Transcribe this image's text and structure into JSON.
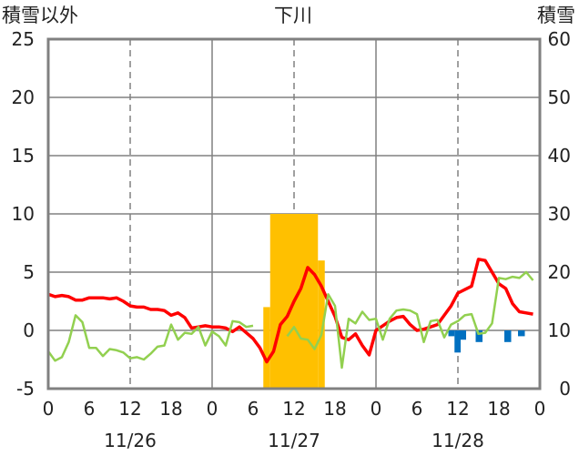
{
  "chart_data": {
    "type": "line",
    "title": "下川",
    "left_axis_label": "積雪以外",
    "right_axis_label": "積雪",
    "left_ylim": [
      -5,
      25
    ],
    "left_yticks": [
      "25",
      "20",
      "15",
      "10",
      "5",
      "0",
      "-5"
    ],
    "right_ylim": [
      0,
      60
    ],
    "right_yticks": [
      "60",
      "50",
      "40",
      "30",
      "20",
      "10",
      "0"
    ],
    "x_range_hours": [
      0,
      72
    ],
    "x_tick_labels": [
      "0",
      "6",
      "12",
      "18",
      "0",
      "6",
      "12",
      "18",
      "0",
      "6",
      "12",
      "18",
      "0"
    ],
    "date_labels": [
      {
        "hour": 12,
        "text": "11/26"
      },
      {
        "hour": 36,
        "text": "11/27"
      },
      {
        "hour": 60,
        "text": "11/28"
      }
    ],
    "grid": true,
    "series": [
      {
        "color": "#ff0000",
        "axis": "left",
        "kind": "line",
        "x": [
          0,
          1,
          2,
          3,
          4,
          5,
          6,
          7,
          8,
          9,
          10,
          11,
          12,
          13,
          14,
          15,
          16,
          17,
          18,
          19,
          20,
          21,
          22,
          23,
          24,
          25,
          26,
          27,
          28,
          29,
          30,
          31,
          32,
          33,
          34,
          35,
          36,
          37,
          38,
          39,
          40,
          41,
          42,
          43,
          44,
          45,
          46,
          47,
          48,
          49,
          50,
          51,
          52,
          53,
          54,
          55,
          56,
          57,
          58,
          59,
          60,
          61,
          62,
          63,
          64,
          65,
          66,
          67,
          68,
          69,
          70,
          71
        ],
        "values": [
          3.1,
          2.9,
          3.0,
          2.9,
          2.6,
          2.6,
          2.8,
          2.8,
          2.8,
          2.7,
          2.8,
          2.5,
          2.1,
          2.0,
          2.0,
          1.8,
          1.8,
          1.7,
          1.3,
          1.5,
          1.1,
          0.2,
          0.3,
          0.4,
          0.3,
          0.3,
          0.2,
          -0.1,
          0.3,
          -0.2,
          -0.7,
          -1.5,
          -2.7,
          -1.8,
          0.5,
          1.2,
          2.5,
          3.6,
          5.4,
          4.8,
          3.8,
          2.5,
          1.2,
          -0.6,
          -0.8,
          -0.3,
          -1.3,
          -2.1,
          0.0,
          0.4,
          0.8,
          1.1,
          1.2,
          0.5,
          0.0,
          0.1,
          0.3,
          0.5,
          1.3,
          2.1,
          3.2,
          3.5,
          3.8,
          6.1,
          6.0,
          5.0,
          4.0,
          3.6,
          2.3,
          1.6,
          1.5,
          1.4
        ]
      },
      {
        "color": "#92d050",
        "axis": "left",
        "kind": "line",
        "x": [
          0,
          1,
          2,
          3,
          4,
          5,
          6,
          7,
          8,
          9,
          10,
          11,
          12,
          13,
          14,
          15,
          16,
          17,
          18,
          19,
          20,
          21,
          22,
          23,
          24,
          25,
          26,
          27,
          28,
          29,
          30,
          31,
          32,
          33,
          34,
          35,
          36,
          37,
          38,
          39,
          40,
          41,
          42,
          43,
          44,
          45,
          46,
          47,
          48,
          49,
          50,
          51,
          52,
          53,
          54,
          55,
          56,
          57,
          58,
          59,
          60,
          61,
          62,
          63,
          64,
          65,
          66,
          67,
          68,
          69,
          70,
          71
        ],
        "values": [
          -1.8,
          -2.6,
          -2.3,
          -1.0,
          1.3,
          0.7,
          -1.5,
          -1.5,
          -2.2,
          -1.6,
          -1.7,
          -1.9,
          -2.4,
          -2.3,
          -2.5,
          -2.0,
          -1.4,
          -1.3,
          0.5,
          -0.8,
          -0.2,
          -0.3,
          0.3,
          -1.3,
          -0.1,
          -0.5,
          -1.3,
          0.8,
          0.7,
          0.3,
          0.4,
          null,
          null,
          null,
          null,
          -0.5,
          0.3,
          -0.7,
          -0.8,
          -1.6,
          -0.4,
          3.1,
          2.1,
          -3.2,
          1.0,
          0.6,
          1.6,
          0.9,
          1.0,
          -0.8,
          1.0,
          1.7,
          1.8,
          1.7,
          1.4,
          -1.0,
          0.8,
          0.9,
          -0.6,
          0.5,
          0.8,
          1.3,
          1.4,
          -0.3,
          -0.2,
          0.6,
          4.5,
          4.4,
          4.6,
          4.5,
          5.0,
          4.3
        ]
      },
      {
        "color": "#ffc000",
        "axis": "right",
        "kind": "bar",
        "bars": [
          {
            "x0": 31.5,
            "x1": 32.5,
            "value": 14
          },
          {
            "x0": 32.5,
            "x1": 39.5,
            "value": 30
          },
          {
            "x0": 39.5,
            "x1": 40.5,
            "value": 22
          }
        ]
      },
      {
        "color": "#0070c0",
        "axis": "left",
        "kind": "bar",
        "bars": [
          {
            "x0": 58.6,
            "x1": 59.5,
            "value": -0.5
          },
          {
            "x0": 59.5,
            "x1": 60.4,
            "value": -1.9
          },
          {
            "x0": 60.4,
            "x1": 61.2,
            "value": -0.8
          },
          {
            "x0": 62.6,
            "x1": 63.6,
            "value": -1.0
          },
          {
            "x0": 66.8,
            "x1": 67.8,
            "value": -1.0
          },
          {
            "x0": 68.8,
            "x1": 69.8,
            "value": -0.5
          }
        ]
      },
      {
        "color": "#7030a0",
        "axis": "left",
        "kind": "line",
        "x": [
          0,
          72
        ],
        "values": [
          -5,
          -5
        ]
      }
    ]
  }
}
